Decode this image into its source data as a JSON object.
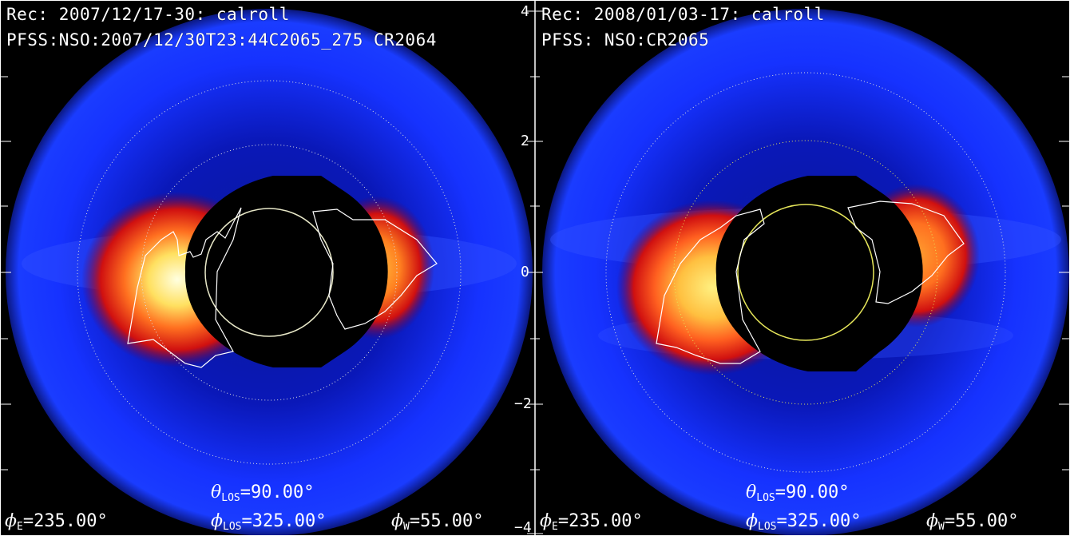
{
  "panels": [
    {
      "header_line1": "Rec: 2007/12/17-30: calroll",
      "header_line2": "PFSS:NSO:2007/12/30T23:44C2065_275 CR2064",
      "theta_los": "=90.00°",
      "phi_e": "=235.00°",
      "phi_los": "=325.00°",
      "phi_w": "=55.00°"
    },
    {
      "header_line1": "Rec: 2008/01/03-17: calroll",
      "header_line2": "PFSS: NSO:CR2065",
      "theta_los": "=90.00°",
      "phi_e": "=235.00°",
      "phi_los": "=325.00°",
      "phi_w": "=55.00°"
    }
  ],
  "symbols": {
    "theta": "θ",
    "phi": "ϕ",
    "sub_los": "LOS",
    "sub_e": "E",
    "sub_w": "W"
  },
  "axis_ticks": [
    "4",
    "2",
    "0",
    "−2",
    "−4"
  ],
  "colors": {
    "background": "#000000",
    "corona_outer": "#1a2cff",
    "streamer_red": "#e01010",
    "streamer_yellow": "#fff060",
    "contour": "#ffffff",
    "solar_disk_left": "#e8e8c8",
    "solar_disk_right": "#e6e65a"
  }
}
